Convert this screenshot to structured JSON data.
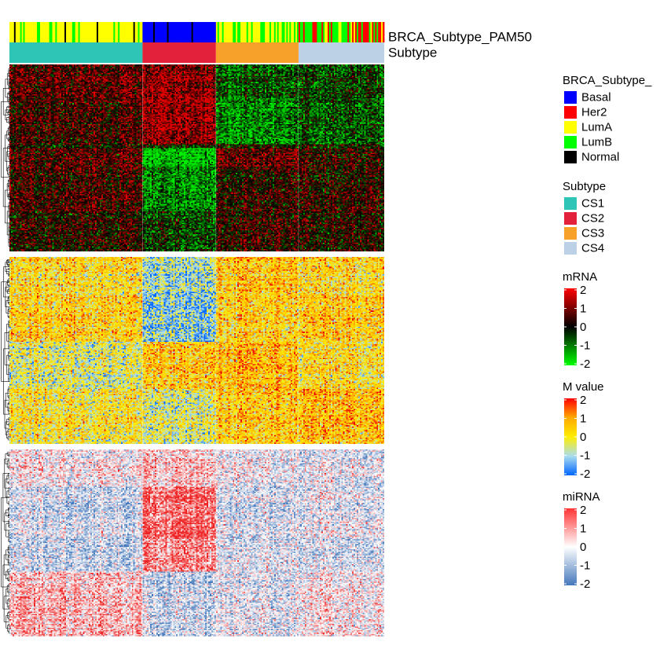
{
  "chart_data": {
    "type": "heatmap",
    "annotation_tracks": [
      {
        "name": "BRCA_Subtype_PAM50",
        "label": "BRCA_Subtype_PAM50"
      },
      {
        "name": "Subtype",
        "label": "Subtype"
      }
    ],
    "sample_clusters": [
      {
        "name": "CS1",
        "samples": 87,
        "pam50_mix": {
          "LumA": 0.8,
          "LumB": 0.12,
          "Normal": 0.08
        }
      },
      {
        "name": "CS2",
        "samples": 48,
        "pam50_mix": {
          "Basal": 0.92,
          "Normal": 0.08
        }
      },
      {
        "name": "CS3",
        "samples": 54,
        "pam50_mix": {
          "LumA": 0.55,
          "LumB": 0.45
        }
      },
      {
        "name": "CS4",
        "samples": 56,
        "pam50_mix": {
          "LumB": 0.5,
          "Her2": 0.4,
          "LumA": 0.1
        }
      }
    ],
    "panels": [
      {
        "name": "mRNA",
        "colors": [
          "#00ee00",
          "#000000",
          "#ee0000"
        ],
        "range": [
          -2,
          2
        ]
      },
      {
        "name": "M value",
        "colors": [
          "#0066ff",
          "#aaddee",
          "#ffee00",
          "#ffaa00",
          "#ee0000"
        ],
        "range": [
          -2,
          2
        ]
      },
      {
        "name": "miRNA",
        "colors": [
          "#4477bb",
          "#ffffff",
          "#ee2222"
        ],
        "range": [
          -2,
          2
        ]
      }
    ],
    "legends": [
      {
        "title": "BRCA_Subtype_PAM50",
        "title_shown": "BRCA_Subtype_",
        "items": [
          {
            "label": "Basal",
            "color": "#0000ff"
          },
          {
            "label": "Her2",
            "color": "#ff0000"
          },
          {
            "label": "LumA",
            "color": "#ffff00"
          },
          {
            "label": "LumB",
            "color": "#00ff00"
          },
          {
            "label": "Normal",
            "color": "#000000"
          }
        ]
      },
      {
        "title": "Subtype",
        "items": [
          {
            "label": "CS1",
            "color": "#2ec4b6"
          },
          {
            "label": "CS2",
            "color": "#e4213a"
          },
          {
            "label": "CS3",
            "color": "#f7a12b"
          },
          {
            "label": "CS4",
            "color": "#bcd0e6"
          }
        ]
      }
    ],
    "colorbars": [
      {
        "title": "mRNA",
        "ticks": [
          "2",
          "1",
          "0",
          "-1",
          "-2"
        ],
        "colors": [
          "#ff0000",
          "#000000",
          "#00ff00"
        ]
      },
      {
        "title": "M value",
        "ticks": [
          "2",
          "1",
          "0",
          "-1",
          "-2"
        ],
        "colors": [
          "#ff0000",
          "#ffaa00",
          "#ffee00",
          "#aaddee",
          "#0066ff"
        ]
      },
      {
        "title": "miRNA",
        "ticks": [
          "2",
          "1",
          "0",
          "-1",
          "-2"
        ],
        "colors": [
          "#ff3333",
          "#ffffff",
          "#4477bb"
        ]
      }
    ],
    "grid": false
  }
}
